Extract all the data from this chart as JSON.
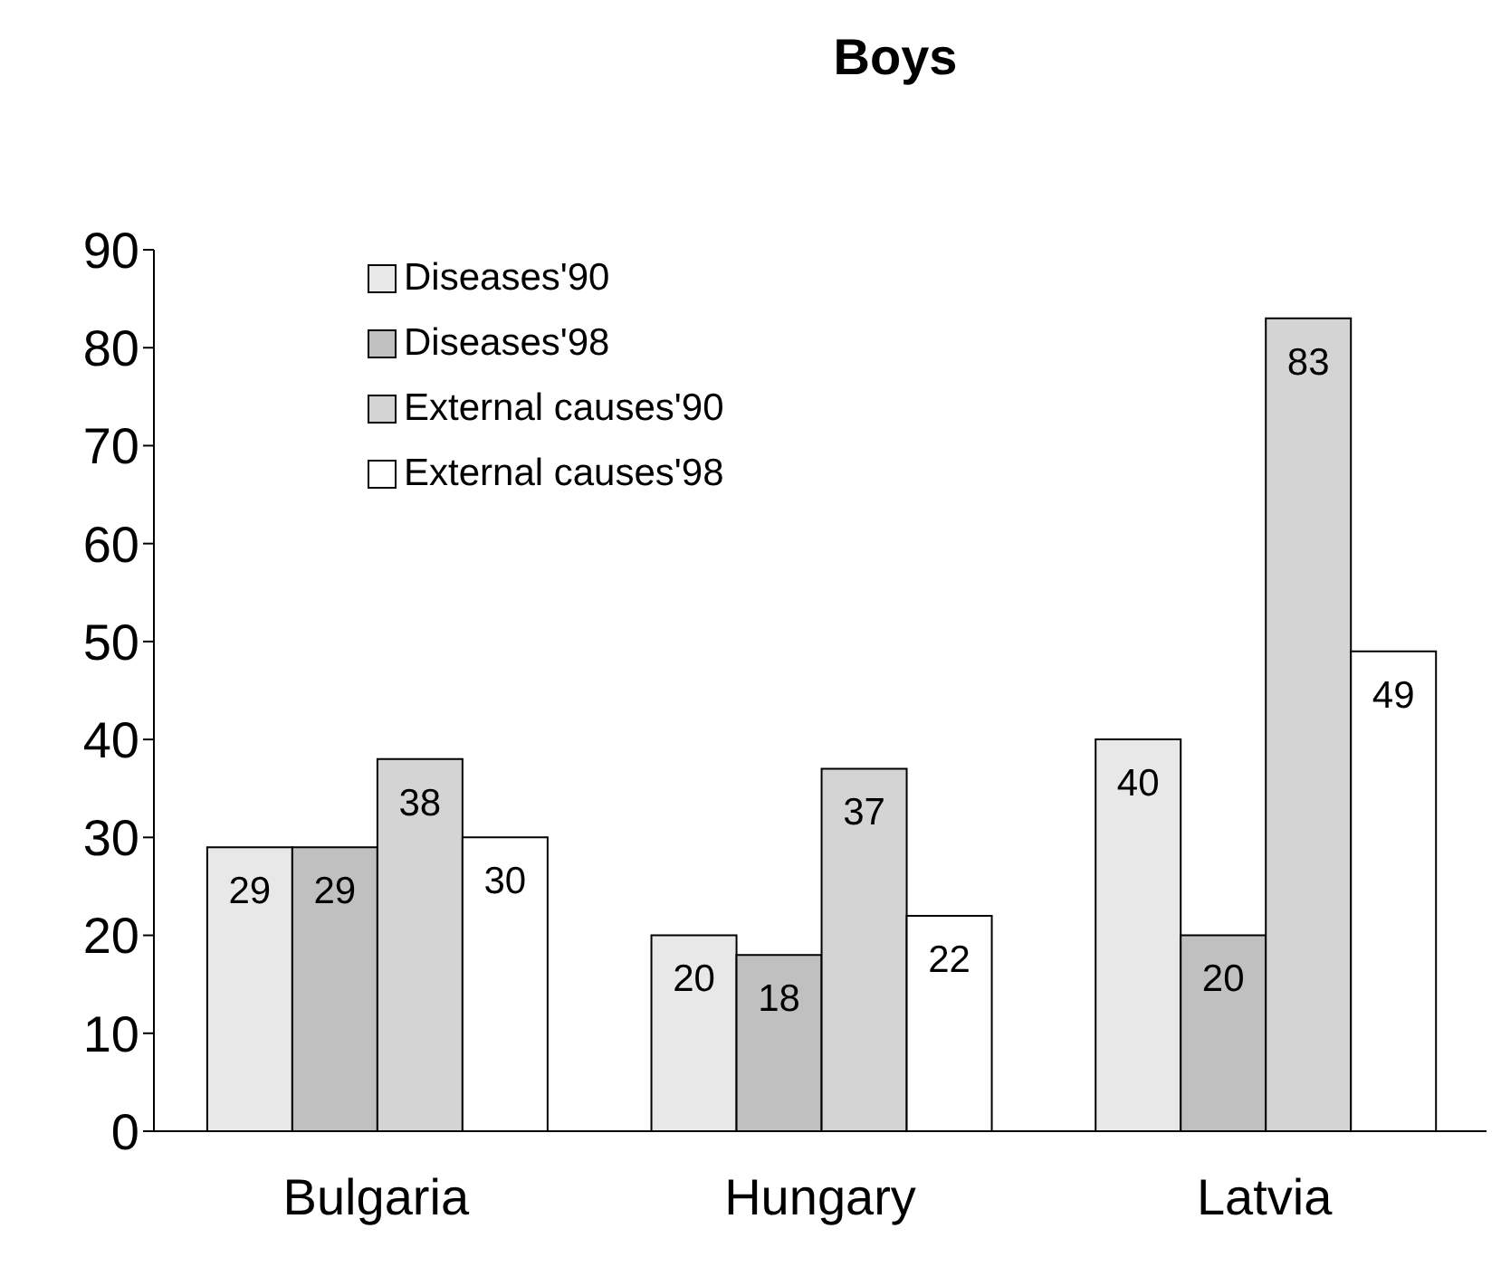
{
  "chart_data": {
    "type": "bar",
    "title": "Boys",
    "categories": [
      "Bulgaria",
      "Hungary",
      "Latvia"
    ],
    "series": [
      {
        "name": "Diseases'90",
        "color": "#e8e8e8",
        "values": [
          29,
          20,
          40
        ]
      },
      {
        "name": "Diseases'98",
        "color": "#c0c0c0",
        "values": [
          29,
          18,
          20
        ]
      },
      {
        "name": "External causes'90",
        "color": "#d4d4d4",
        "values": [
          38,
          37,
          83
        ]
      },
      {
        "name": "External causes'98",
        "color": "#ffffff",
        "values": [
          30,
          22,
          49
        ]
      }
    ],
    "ylim": [
      0,
      90
    ],
    "yticks": [
      0,
      10,
      20,
      30,
      40,
      50,
      60,
      70,
      80,
      90
    ],
    "grid": false,
    "legend": "top left",
    "data_labels": true
  }
}
